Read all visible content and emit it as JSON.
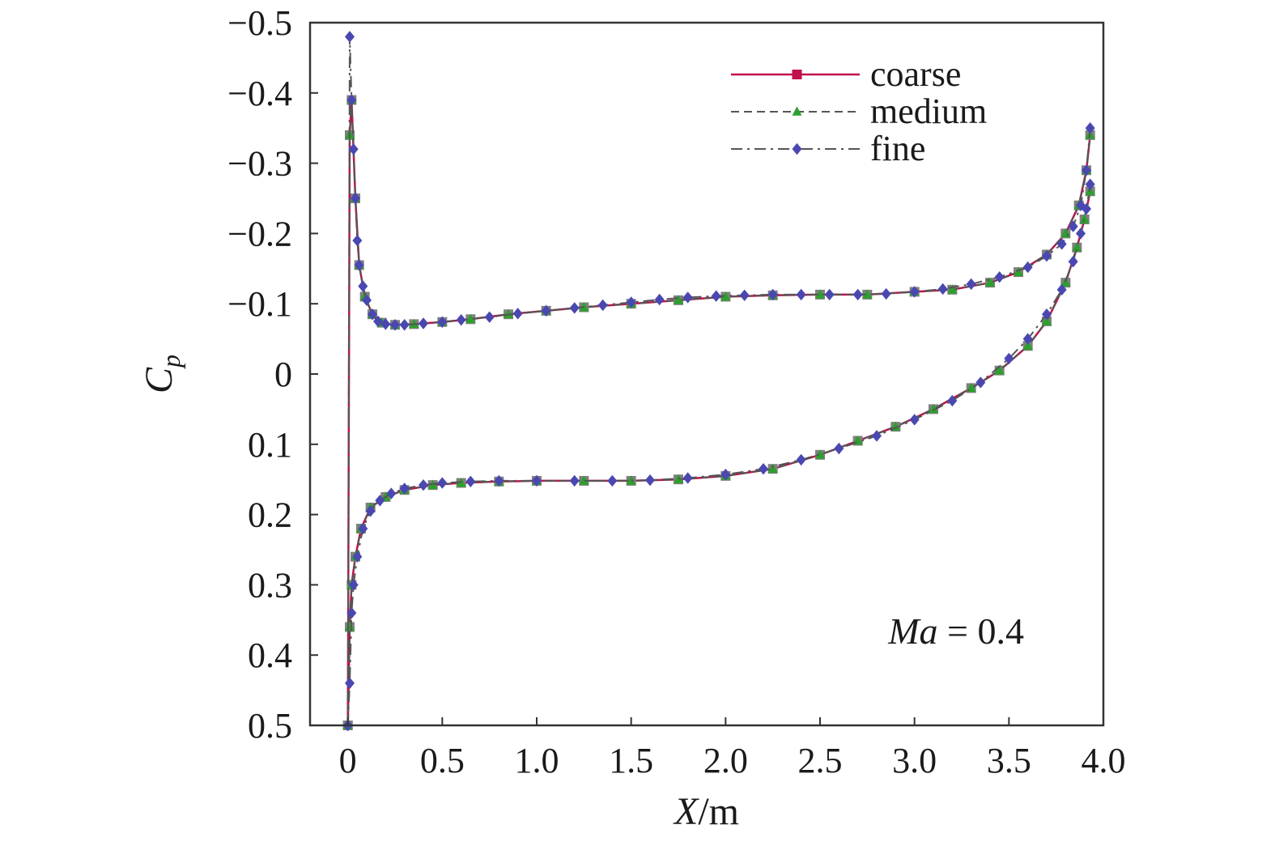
{
  "chart_data": {
    "type": "line",
    "title": "",
    "xlabel": {
      "main": "X",
      "unit": "/m"
    },
    "ylabel": {
      "main": "C",
      "subscript": "p"
    },
    "xlim": [
      -0.2,
      4.0
    ],
    "ylim": [
      -0.5,
      0.5
    ],
    "y_inverted": true,
    "x_ticks": [
      0,
      0.5,
      1.0,
      1.5,
      2.0,
      2.5,
      3.0,
      3.5,
      4.0
    ],
    "x_tick_labels": [
      "0",
      "0.5",
      "1.0",
      "1.5",
      "2.0",
      "2.5",
      "3.0",
      "3.5",
      "4.0"
    ],
    "y_ticks": [
      -0.5,
      -0.4,
      -0.3,
      -0.2,
      -0.1,
      0,
      0.1,
      0.2,
      0.3,
      0.4,
      0.5
    ],
    "y_tick_labels": [
      "−0.5",
      "−0.4",
      "−0.3",
      "−0.2",
      "−0.1",
      "0",
      "0.1",
      "0.2",
      "0.3",
      "0.4",
      "0.5"
    ],
    "grid": false,
    "legend_position": "top-right",
    "annotation": {
      "italic": "Ma",
      "rest": " = 0.4"
    },
    "series": [
      {
        "name": "coarse",
        "color": "#c0114a",
        "line_style": "solid",
        "marker": "square",
        "marker_color": "#808080",
        "upper": {
          "x": [
            0.0,
            0.01,
            0.02,
            0.04,
            0.06,
            0.09,
            0.13,
            0.18,
            0.25,
            0.35,
            0.5,
            0.65,
            0.85,
            1.05,
            1.25,
            1.5,
            1.75,
            2.0,
            2.25,
            2.5,
            2.75,
            3.0,
            3.2,
            3.4,
            3.55,
            3.7,
            3.8,
            3.87,
            3.91,
            3.93
          ],
          "y": [
            0.5,
            -0.34,
            -0.39,
            -0.25,
            -0.155,
            -0.11,
            -0.085,
            -0.073,
            -0.07,
            -0.071,
            -0.074,
            -0.078,
            -0.085,
            -0.09,
            -0.095,
            -0.1,
            -0.105,
            -0.11,
            -0.112,
            -0.113,
            -0.113,
            -0.117,
            -0.12,
            -0.13,
            -0.145,
            -0.17,
            -0.2,
            -0.24,
            -0.29,
            -0.34
          ]
        },
        "lower": {
          "x": [
            0.0,
            0.01,
            0.02,
            0.04,
            0.07,
            0.12,
            0.2,
            0.3,
            0.45,
            0.6,
            0.8,
            1.0,
            1.25,
            1.5,
            1.75,
            2.0,
            2.25,
            2.5,
            2.7,
            2.9,
            3.1,
            3.3,
            3.45,
            3.6,
            3.7,
            3.8,
            3.86,
            3.9,
            3.93
          ],
          "y": [
            0.5,
            0.36,
            0.3,
            0.26,
            0.22,
            0.19,
            0.175,
            0.165,
            0.158,
            0.155,
            0.153,
            0.152,
            0.152,
            0.152,
            0.15,
            0.145,
            0.135,
            0.115,
            0.095,
            0.075,
            0.05,
            0.02,
            -0.005,
            -0.04,
            -0.075,
            -0.13,
            -0.18,
            -0.22,
            -0.26
          ]
        }
      },
      {
        "name": "medium",
        "color": "#555555",
        "line_style": "dashed",
        "marker": "triangle",
        "marker_color": "#2ca02c",
        "upper": {
          "x": [
            0.0,
            0.01,
            0.02,
            0.04,
            0.06,
            0.09,
            0.13,
            0.18,
            0.25,
            0.35,
            0.5,
            0.65,
            0.85,
            1.05,
            1.25,
            1.5,
            1.75,
            2.0,
            2.25,
            2.5,
            2.75,
            3.0,
            3.2,
            3.4,
            3.55,
            3.7,
            3.8,
            3.87,
            3.91,
            3.93
          ],
          "y": [
            0.5,
            -0.34,
            -0.39,
            -0.25,
            -0.155,
            -0.11,
            -0.085,
            -0.073,
            -0.07,
            -0.071,
            -0.074,
            -0.078,
            -0.085,
            -0.09,
            -0.095,
            -0.1,
            -0.105,
            -0.11,
            -0.112,
            -0.113,
            -0.113,
            -0.117,
            -0.12,
            -0.13,
            -0.145,
            -0.17,
            -0.2,
            -0.24,
            -0.29,
            -0.34
          ]
        },
        "lower": {
          "x": [
            0.0,
            0.01,
            0.02,
            0.04,
            0.07,
            0.12,
            0.2,
            0.3,
            0.45,
            0.6,
            0.8,
            1.0,
            1.25,
            1.5,
            1.75,
            2.0,
            2.25,
            2.5,
            2.7,
            2.9,
            3.1,
            3.3,
            3.45,
            3.6,
            3.7,
            3.8,
            3.86,
            3.9,
            3.93
          ],
          "y": [
            0.5,
            0.36,
            0.3,
            0.26,
            0.22,
            0.19,
            0.175,
            0.165,
            0.158,
            0.155,
            0.153,
            0.152,
            0.152,
            0.152,
            0.15,
            0.145,
            0.135,
            0.115,
            0.095,
            0.075,
            0.05,
            0.02,
            -0.005,
            -0.04,
            -0.075,
            -0.13,
            -0.18,
            -0.22,
            -0.26
          ]
        }
      },
      {
        "name": "fine",
        "color": "#555555",
        "line_style": "dashdot",
        "marker": "diamond",
        "marker_color": "#4a48b0",
        "upper": {
          "x": [
            0.0,
            0.01,
            0.02,
            0.03,
            0.04,
            0.05,
            0.06,
            0.08,
            0.1,
            0.13,
            0.16,
            0.2,
            0.25,
            0.3,
            0.4,
            0.5,
            0.6,
            0.75,
            0.9,
            1.05,
            1.2,
            1.35,
            1.5,
            1.65,
            1.8,
            1.95,
            2.1,
            2.25,
            2.4,
            2.55,
            2.7,
            2.85,
            3.0,
            3.15,
            3.3,
            3.45,
            3.6,
            3.7,
            3.78,
            3.84,
            3.88,
            3.91,
            3.93
          ],
          "y": [
            0.5,
            -0.48,
            -0.39,
            -0.32,
            -0.25,
            -0.19,
            -0.155,
            -0.125,
            -0.105,
            -0.085,
            -0.075,
            -0.071,
            -0.07,
            -0.07,
            -0.072,
            -0.074,
            -0.077,
            -0.081,
            -0.086,
            -0.09,
            -0.094,
            -0.098,
            -0.102,
            -0.106,
            -0.109,
            -0.111,
            -0.112,
            -0.113,
            -0.113,
            -0.113,
            -0.113,
            -0.114,
            -0.117,
            -0.121,
            -0.128,
            -0.138,
            -0.152,
            -0.168,
            -0.185,
            -0.21,
            -0.24,
            -0.29,
            -0.35
          ]
        },
        "lower": {
          "x": [
            0.0,
            0.01,
            0.02,
            0.03,
            0.05,
            0.08,
            0.12,
            0.17,
            0.23,
            0.3,
            0.4,
            0.5,
            0.65,
            0.8,
            1.0,
            1.2,
            1.4,
            1.6,
            1.8,
            2.0,
            2.2,
            2.4,
            2.6,
            2.8,
            3.0,
            3.2,
            3.35,
            3.5,
            3.6,
            3.7,
            3.78,
            3.84,
            3.88,
            3.91,
            3.93
          ],
          "y": [
            0.5,
            0.44,
            0.34,
            0.3,
            0.26,
            0.22,
            0.195,
            0.18,
            0.17,
            0.163,
            0.158,
            0.155,
            0.153,
            0.152,
            0.152,
            0.152,
            0.152,
            0.151,
            0.148,
            0.143,
            0.135,
            0.122,
            0.106,
            0.088,
            0.065,
            0.038,
            0.012,
            -0.022,
            -0.05,
            -0.085,
            -0.12,
            -0.16,
            -0.2,
            -0.235,
            -0.27
          ]
        }
      }
    ]
  }
}
